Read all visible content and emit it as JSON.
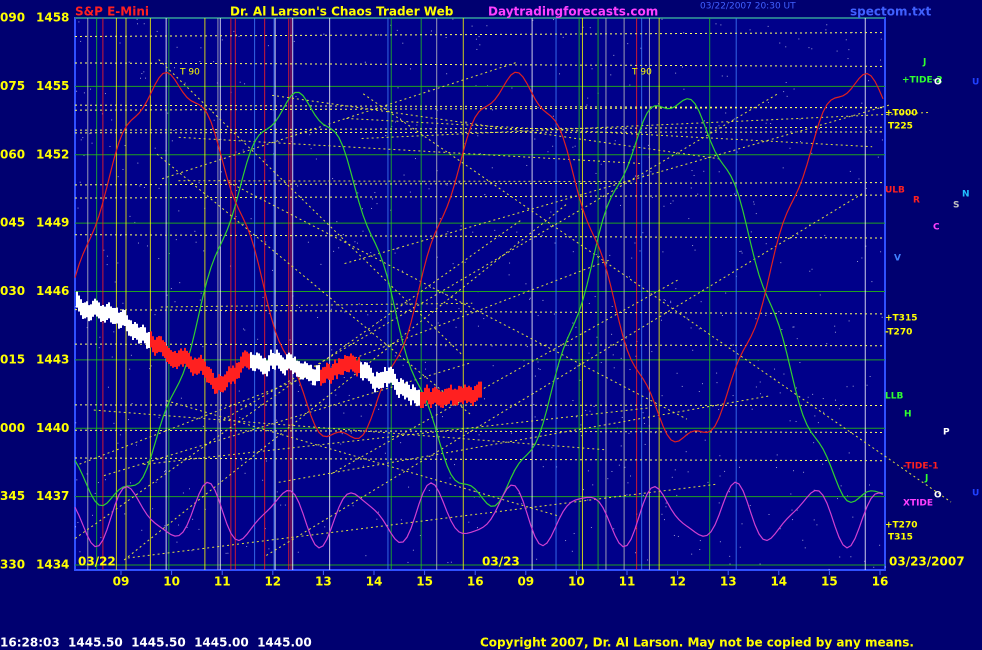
{
  "header": {
    "instrument": "S&P E-Mini",
    "title": "Dr. Al Larson's Chaos Trader Web",
    "site": "Daytradingforecasts.com",
    "timestamp": "03/22/2007 20:30 UT",
    "file": "spectom.txt"
  },
  "y_labels": [
    {
      "angle": "090",
      "price": "1458"
    },
    {
      "angle": "075",
      "price": "1455"
    },
    {
      "angle": "060",
      "price": "1452"
    },
    {
      "angle": "045",
      "price": "1449"
    },
    {
      "angle": "030",
      "price": "1446"
    },
    {
      "angle": "015",
      "price": "1443"
    },
    {
      "angle": "000",
      "price": "1440"
    },
    {
      "angle": "345",
      "price": "1437"
    },
    {
      "angle": "330",
      "price": "1434"
    }
  ],
  "x_labels": [
    "09",
    "10",
    "11",
    "12",
    "13",
    "14",
    "15",
    "16",
    "09",
    "10",
    "11",
    "12",
    "13",
    "14",
    "15",
    "16"
  ],
  "dates": {
    "start": "03/22",
    "mid": "03/23",
    "end": "03/23/2007"
  },
  "markers": [
    "T 90",
    "T 90"
  ],
  "right_labels": [
    "+TIDE-2",
    "+T000",
    "T225",
    "ULB",
    "+T315",
    "-T270",
    "LLB",
    "-TIDE-1",
    "XTIDE",
    "+T270",
    "T315"
  ],
  "planets": [
    "J",
    "O",
    "U",
    "R",
    "S",
    "N",
    "C",
    "V",
    "H",
    "P",
    "J",
    "O",
    "U"
  ],
  "status": {
    "quote": "16:28:03  1445.50  1445.50  1445.00  1445.00",
    "copyright": "Copyright 2007, Dr. Al Larson. May not be copied by any means."
  }
}
